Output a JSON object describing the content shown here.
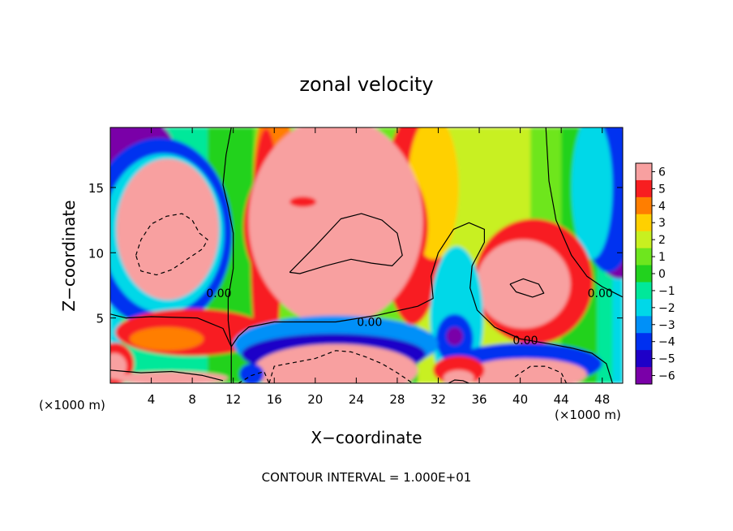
{
  "chart_data": {
    "type": "heatmap",
    "title": "zonal velocity",
    "xlabel": "X−coordinate",
    "ylabel": "Z−coordinate",
    "x_unit_left": "(×1000 m)",
    "x_unit_right": "(×1000 m)",
    "footer": "CONTOUR INTERVAL = 1.000E+01",
    "xlim": [
      0,
      50
    ],
    "ylim": [
      0,
      19.6
    ],
    "x_ticks": [
      4,
      8,
      12,
      16,
      20,
      24,
      28,
      32,
      36,
      40,
      44,
      48
    ],
    "y_ticks": [
      5,
      10,
      15
    ],
    "colorbar": {
      "levels": [
        6,
        5,
        4,
        3,
        2,
        1,
        0,
        -1,
        -2,
        -3,
        -4,
        -5,
        -6
      ],
      "colors": {
        "-6": "#7a00a8",
        "-5": "#1e00c8",
        "-4": "#0030f0",
        "-3": "#0090f8",
        "-2": "#00d8e8",
        "-1": "#00e89a",
        "0": "#22d21e",
        "1": "#6ee61e",
        "2": "#c8f020",
        "3": "#ffd000",
        "4": "#ff7e00",
        "5": "#f81e20",
        "6": "#f8a0a0"
      }
    },
    "contour_labels": [
      {
        "text": "0.00",
        "x": 10.6,
        "y": 6.9
      },
      {
        "text": "0.00",
        "x": 25.3,
        "y": 4.7
      },
      {
        "text": "0.00",
        "x": 40.5,
        "y": 3.3
      },
      {
        "text": "0.00",
        "x": 47.8,
        "y": 6.9
      }
    ],
    "fields": [
      {
        "value": -2,
        "x": 0,
        "y": 0,
        "w": 50,
        "h": 19.6
      },
      {
        "value": -1,
        "x": 1,
        "y": 0,
        "w": 48,
        "h": 19.6
      },
      {
        "value": 0,
        "x": 9.5,
        "y": 0,
        "w": 38,
        "h": 19.6
      },
      {
        "value": 1,
        "x": 14,
        "y": 2,
        "w": 30,
        "h": 17.6
      },
      {
        "value": 2,
        "x": 30,
        "y": 0,
        "w": 11,
        "h": 19.6
      }
    ],
    "blobs": [
      {
        "value": -6,
        "cx": 2.3,
        "cy": 18.3,
        "rx": 3.8,
        "ry": 2.0
      },
      {
        "value": -4,
        "cx": 4.8,
        "cy": 11.5,
        "rx": 7.1,
        "ry": 7.3
      },
      {
        "value": -2,
        "cx": 5.2,
        "cy": 11.5,
        "rx": 5.9,
        "ry": 6.1
      },
      {
        "value": 6,
        "cx": 5.6,
        "cy": 11.8,
        "rx": 5.0,
        "ry": 5.4
      },
      {
        "value": -6,
        "cx": 49.7,
        "cy": 14.5,
        "rx": 3.5,
        "ry": 6.5
      },
      {
        "value": -4,
        "cx": 48.6,
        "cy": 14.5,
        "rx": 2.8,
        "ry": 6.0
      },
      {
        "value": -2,
        "cx": 47.0,
        "cy": 15.0,
        "rx": 2.0,
        "ry": 5.5
      },
      {
        "value": 4,
        "cx": 16.0,
        "cy": 16.0,
        "rx": 2.0,
        "ry": 5.5
      },
      {
        "value": 5,
        "cx": 15.2,
        "cy": 10.0,
        "rx": 1.5,
        "ry": 9.5
      },
      {
        "value": 5,
        "cx": 29.5,
        "cy": 12.5,
        "rx": 3.0,
        "ry": 8.0
      },
      {
        "value": 3,
        "cx": 31.5,
        "cy": 15.0,
        "rx": 2.5,
        "ry": 5.5
      },
      {
        "value": 5,
        "cx": 22.0,
        "cy": 12.0,
        "rx": 9.0,
        "ry": 7.2
      },
      {
        "value": 6,
        "cx": 22.0,
        "cy": 12.4,
        "rx": 8.5,
        "ry": 8.0
      },
      {
        "value": 5,
        "cx": 41.3,
        "cy": 7.8,
        "rx": 5.8,
        "ry": 4.8
      },
      {
        "value": 6,
        "cx": 40.3,
        "cy": 7.6,
        "rx": 4.6,
        "ry": 3.4
      },
      {
        "value": -2,
        "cx": 33.8,
        "cy": 5.0,
        "rx": 2.6,
        "ry": 5.5
      },
      {
        "value": -4,
        "cx": 33.6,
        "cy": 3.4,
        "rx": 1.8,
        "ry": 1.9
      },
      {
        "value": -6,
        "cx": 33.6,
        "cy": 3.6,
        "rx": 0.8,
        "ry": 0.7
      },
      {
        "value": 5,
        "cx": 8.0,
        "cy": 3.9,
        "rx": 7.5,
        "ry": 1.8
      },
      {
        "value": 4,
        "cx": 5.5,
        "cy": 3.4,
        "rx": 3.6,
        "ry": 0.9
      },
      {
        "value": -3,
        "cx": 22.0,
        "cy": 3.0,
        "rx": 10.0,
        "ry": 2.2
      },
      {
        "value": -5,
        "cx": 21.8,
        "cy": 2.2,
        "rx": 9.0,
        "ry": 1.6
      },
      {
        "value": 6,
        "cx": 22.0,
        "cy": 1.0,
        "rx": 8.0,
        "ry": 2.0
      },
      {
        "value": -4,
        "cx": 40.5,
        "cy": 1.5,
        "rx": 7.5,
        "ry": 1.6
      },
      {
        "value": 6,
        "cx": 40.5,
        "cy": 0.7,
        "rx": 6.0,
        "ry": 1.2
      },
      {
        "value": 5,
        "cx": 34.0,
        "cy": 1.0,
        "rx": 2.5,
        "ry": 1.1
      },
      {
        "value": 6,
        "cx": 34.0,
        "cy": 0.4,
        "rx": 1.5,
        "ry": 0.6
      },
      {
        "value": -4,
        "cx": 13.8,
        "cy": 0.7,
        "rx": 1.2,
        "ry": 0.8
      },
      {
        "value": 5,
        "cx": 0.5,
        "cy": 1.5,
        "rx": 1.8,
        "ry": 1.6
      },
      {
        "value": 6,
        "cx": 0.4,
        "cy": 1.3,
        "rx": 1.2,
        "ry": 1.0
      },
      {
        "value": 6,
        "cx": 6.0,
        "cy": 0.4,
        "rx": 5.5,
        "ry": 0.5
      },
      {
        "value": 5,
        "cx": 18.8,
        "cy": 13.9,
        "rx": 1.3,
        "ry": 0.4
      }
    ],
    "contours": [
      {
        "style": "solid",
        "points": [
          [
            11.8,
            0
          ],
          [
            11.8,
            2.8
          ],
          [
            11.0,
            4.2
          ],
          [
            8.5,
            5.0
          ],
          [
            4.0,
            5.1
          ],
          [
            1.5,
            5.0
          ],
          [
            0,
            5.3
          ]
        ]
      },
      {
        "style": "solid",
        "points": [
          [
            11.8,
            2.8
          ],
          [
            12.5,
            3.6
          ],
          [
            13.5,
            4.3
          ],
          [
            16,
            4.7
          ],
          [
            22,
            4.7
          ],
          [
            26,
            5.2
          ],
          [
            30,
            5.9
          ],
          [
            31.5,
            6.5
          ],
          [
            31.3,
            8.2
          ],
          [
            32.0,
            10.0
          ],
          [
            33.5,
            11.8
          ],
          [
            35.0,
            12.3
          ],
          [
            36.5,
            11.8
          ],
          [
            36.5,
            10.8
          ],
          [
            35.3,
            9.0
          ],
          [
            35.1,
            7.3
          ],
          [
            35.8,
            5.6
          ],
          [
            37.5,
            4.3
          ],
          [
            40.0,
            3.4
          ],
          [
            43.0,
            3.0
          ],
          [
            45.0,
            2.7
          ],
          [
            47.0,
            2.3
          ],
          [
            48.4,
            1.5
          ],
          [
            49.0,
            0
          ]
        ]
      },
      {
        "style": "solid",
        "points": [
          [
            11.8,
            2.8
          ],
          [
            11.5,
            4.8
          ],
          [
            11.5,
            6.5
          ],
          [
            12.0,
            8.8
          ],
          [
            12.0,
            11.5
          ],
          [
            11.5,
            13.5
          ],
          [
            11.0,
            15.2
          ],
          [
            11.3,
            17.5
          ],
          [
            11.8,
            19.6
          ]
        ]
      },
      {
        "style": "solid",
        "points": [
          [
            42.5,
            19.6
          ],
          [
            42.8,
            15.5
          ],
          [
            43.5,
            12.5
          ],
          [
            45.0,
            9.8
          ],
          [
            46.5,
            8.2
          ],
          [
            48.0,
            7.4
          ],
          [
            49.5,
            6.8
          ],
          [
            50,
            6.6
          ]
        ]
      },
      {
        "style": "solid",
        "points": [
          [
            17.5,
            8.5
          ],
          [
            20.0,
            10.5
          ],
          [
            22.5,
            12.6
          ],
          [
            24.5,
            13.0
          ],
          [
            26.5,
            12.5
          ],
          [
            28.0,
            11.5
          ],
          [
            28.5,
            9.8
          ],
          [
            27.5,
            9.0
          ],
          [
            25.5,
            9.2
          ],
          [
            23.5,
            9.5
          ],
          [
            21.0,
            9.0
          ],
          [
            18.5,
            8.4
          ],
          [
            17.5,
            8.5
          ]
        ]
      },
      {
        "style": "solid",
        "points": [
          [
            39.0,
            7.6
          ],
          [
            40.3,
            8.0
          ],
          [
            41.8,
            7.6
          ],
          [
            42.3,
            6.9
          ],
          [
            41.2,
            6.6
          ],
          [
            39.6,
            7.0
          ],
          [
            39.0,
            7.6
          ]
        ]
      },
      {
        "style": "dashed",
        "points": [
          [
            2.5,
            9.8
          ],
          [
            3.0,
            11.0
          ],
          [
            4.0,
            12.2
          ],
          [
            5.5,
            12.8
          ],
          [
            7.0,
            13.0
          ],
          [
            8.0,
            12.5
          ],
          [
            8.7,
            11.5
          ],
          [
            9.5,
            11.0
          ],
          [
            9.0,
            10.3
          ],
          [
            7.5,
            9.5
          ],
          [
            6.0,
            8.7
          ],
          [
            4.5,
            8.3
          ],
          [
            3.0,
            8.6
          ],
          [
            2.5,
            9.8
          ]
        ]
      },
      {
        "style": "dashed",
        "points": [
          [
            15.5,
            0
          ],
          [
            16.0,
            1.3
          ],
          [
            18.0,
            1.6
          ],
          [
            20.0,
            1.9
          ],
          [
            22.0,
            2.5
          ],
          [
            23.5,
            2.4
          ],
          [
            25.0,
            2.0
          ],
          [
            26.5,
            1.5
          ],
          [
            28.0,
            0.8
          ],
          [
            29.5,
            0
          ]
        ]
      },
      {
        "style": "dashed",
        "points": [
          [
            39.5,
            0.5
          ],
          [
            41.0,
            1.3
          ],
          [
            42.5,
            1.3
          ],
          [
            44.0,
            0.8
          ],
          [
            44.5,
            0
          ]
        ]
      },
      {
        "style": "dashed",
        "points": [
          [
            12.5,
            0
          ],
          [
            13.8,
            0.6
          ],
          [
            15.0,
            0.9
          ],
          [
            15.5,
            0
          ]
        ]
      },
      {
        "style": "solid",
        "points": [
          [
            0,
            1.0
          ],
          [
            3.0,
            0.8
          ],
          [
            6.0,
            0.9
          ],
          [
            9.0,
            0.6
          ],
          [
            11.0,
            0.2
          ]
        ]
      },
      {
        "style": "solid",
        "points": [
          [
            33.0,
            0
          ],
          [
            33.6,
            0.25
          ],
          [
            34.4,
            0.2
          ],
          [
            35.0,
            0
          ]
        ]
      }
    ]
  }
}
